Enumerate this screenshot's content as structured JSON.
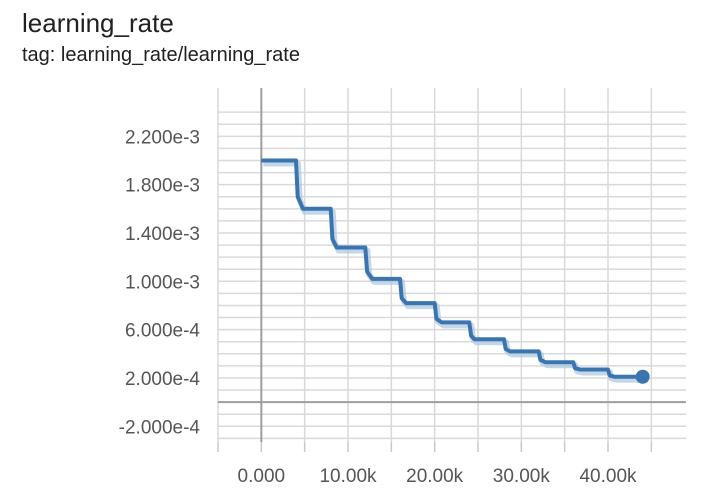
{
  "card": {
    "title": "learning_rate",
    "tag": "tag: learning_rate/learning_rate"
  },
  "chart_data": {
    "type": "line",
    "title": "learning_rate",
    "subtitle": "tag: learning_rate/learning_rate",
    "xlabel": "",
    "ylabel": "",
    "xlim": [
      -5000,
      49000
    ],
    "ylim": [
      -0.00033,
      0.0026
    ],
    "x_ticks": [
      0,
      10000,
      20000,
      30000,
      40000
    ],
    "x_tick_labels": [
      "0.000",
      "10.00k",
      "20.00k",
      "30.00k",
      "40.00k"
    ],
    "y_ticks": [
      0.0022,
      0.0018,
      0.0014,
      0.001,
      0.0006,
      0.0002,
      -0.0002
    ],
    "y_tick_labels": [
      "2.200e-3",
      "1.800e-3",
      "1.400e-3",
      "1.000e-3",
      "6.000e-4",
      "2.000e-4",
      "-2.000e-4"
    ],
    "grid": true,
    "series": [
      {
        "color": "#3a75b0",
        "smoothed_color": "#a9c6e0",
        "x": [
          0,
          4000,
          4200,
          4800,
          8000,
          8200,
          8700,
          12000,
          12200,
          12800,
          16000,
          16200,
          16700,
          20000,
          20200,
          20800,
          24000,
          24200,
          24600,
          28000,
          28200,
          28700,
          32000,
          32200,
          32800,
          36000,
          36200,
          36800,
          40000,
          40200,
          40800,
          44000
        ],
        "values": [
          0.002,
          0.002,
          0.0017,
          0.0016,
          0.0016,
          0.00135,
          0.00128,
          0.00128,
          0.00108,
          0.00102,
          0.00102,
          0.00086,
          0.00082,
          0.00082,
          0.00069,
          0.00066,
          0.00066,
          0.00055,
          0.00052,
          0.00052,
          0.00044,
          0.00042,
          0.00042,
          0.00035,
          0.00033,
          0.00033,
          0.00028,
          0.00027,
          0.00027,
          0.00022,
          0.00021,
          0.00021
        ]
      }
    ],
    "last_point": {
      "x": 44000,
      "y": 0.00021
    }
  }
}
